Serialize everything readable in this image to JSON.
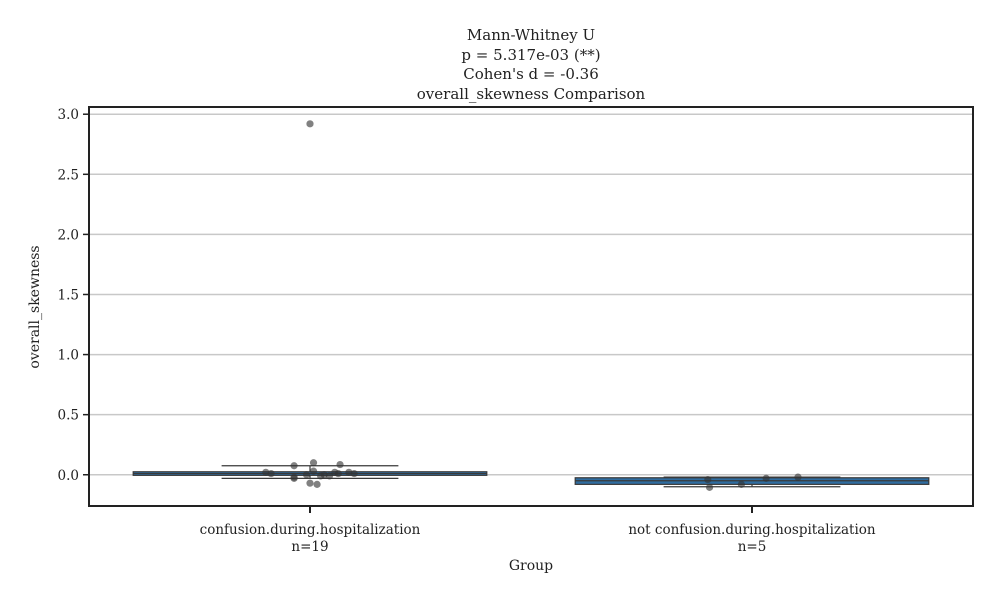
{
  "chart_data": {
    "type": "box",
    "title_lines": [
      "Mann-Whitney U",
      "p = 5.317e-03 (**)",
      "Cohen's d = -0.36",
      "overall_skewness Comparison"
    ],
    "xlabel": "Group",
    "ylabel": "overall_skewness",
    "ylim": [
      -0.26,
      3.06
    ],
    "yticks": [
      0.0,
      0.5,
      1.0,
      1.5,
      2.0,
      2.5,
      3.0
    ],
    "ytick_labels": [
      "0.0",
      "0.5",
      "1.0",
      "1.5",
      "2.0",
      "2.5",
      "3.0"
    ],
    "grid": true,
    "box_color": "#2f6da1",
    "point_color": "#333333",
    "groups": [
      {
        "label": "confusion.during.hospitalization",
        "n_label": "n=19",
        "q1": -0.005,
        "median": 0.01,
        "q3": 0.025,
        "whisker_low": -0.03,
        "whisker_high": 0.075,
        "points": [
          {
            "y": 2.92,
            "j": 0.0
          },
          {
            "y": 0.02,
            "j": -0.25
          },
          {
            "y": 0.01,
            "j": -0.22
          },
          {
            "y": -0.03,
            "j": -0.09
          },
          {
            "y": -0.02,
            "j": -0.09
          },
          {
            "y": 0.075,
            "j": -0.09
          },
          {
            "y": 0.03,
            "j": 0.02
          },
          {
            "y": -0.01,
            "j": 0.06
          },
          {
            "y": 0.0,
            "j": 0.08
          },
          {
            "y": 0.01,
            "j": 0.16
          },
          {
            "y": 0.1,
            "j": 0.02
          },
          {
            "y": -0.08,
            "j": 0.04
          },
          {
            "y": 0.085,
            "j": 0.17
          },
          {
            "y": 0.02,
            "j": 0.22
          },
          {
            "y": 0.01,
            "j": 0.25
          },
          {
            "y": -0.07,
            "j": 0.0
          },
          {
            "y": 0.0,
            "j": -0.02
          },
          {
            "y": 0.02,
            "j": 0.14
          },
          {
            "y": -0.01,
            "j": 0.11
          }
        ]
      },
      {
        "label": "not confusion.during.hospitalization",
        "n_label": "n=5",
        "q1": -0.08,
        "median": -0.05,
        "q3": -0.025,
        "whisker_low": -0.1,
        "whisker_high": -0.02,
        "points": [
          {
            "y": -0.04,
            "j": -0.25
          },
          {
            "y": -0.105,
            "j": -0.24
          },
          {
            "y": -0.08,
            "j": -0.06
          },
          {
            "y": -0.03,
            "j": 0.08
          },
          {
            "y": -0.02,
            "j": 0.26
          }
        ]
      }
    ]
  }
}
